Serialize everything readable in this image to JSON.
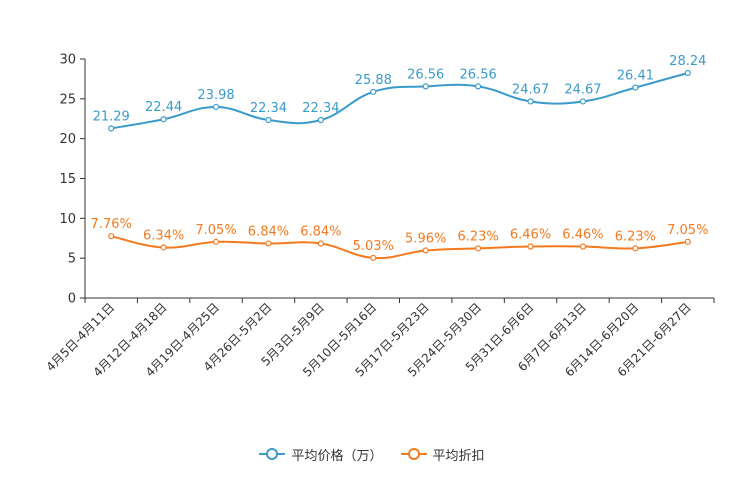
{
  "chart_data": {
    "type": "line",
    "categories": [
      "4月5日-4月11日",
      "4月12日-4月18日",
      "4月19日-4月25日",
      "4月26日-5月2日",
      "5月3日-5月9日",
      "5月10日-5月16日",
      "5月17日-5月23日",
      "5月24日-5月30日",
      "5月31日-6月6日",
      "6月7日-6月13日",
      "6月14日-6月20日",
      "6月21日-6月27日"
    ],
    "series": [
      {
        "name": "平均价格（万）",
        "color": "#3a9bcb",
        "values": [
          21.29,
          22.44,
          23.98,
          22.34,
          22.34,
          25.88,
          26.56,
          26.56,
          24.67,
          24.67,
          26.41,
          28.24
        ],
        "labels": [
          "21.29",
          "22.44",
          "23.98",
          "22.34",
          "22.34",
          "25.88",
          "26.56",
          "26.56",
          "24.67",
          "24.67",
          "26.41",
          "28.24"
        ]
      },
      {
        "name": "平均折扣",
        "color": "#f47a1f",
        "values": [
          7.76,
          6.34,
          7.05,
          6.84,
          6.84,
          5.03,
          5.96,
          6.23,
          6.46,
          6.46,
          6.23,
          7.05
        ],
        "labels": [
          "7.76%",
          "6.34%",
          "7.05%",
          "6.84%",
          "6.84%",
          "5.03%",
          "5.96%",
          "6.23%",
          "6.46%",
          "6.46%",
          "6.23%",
          "7.05%"
        ]
      }
    ],
    "yticks": [
      "0",
      "5",
      "10",
      "15",
      "20",
      "25",
      "30"
    ],
    "ylim": [
      0,
      30
    ],
    "xlabel": "",
    "ylabel": "",
    "grid": false,
    "legend_position": "bottom-center"
  }
}
